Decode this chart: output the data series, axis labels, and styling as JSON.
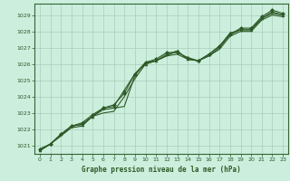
{
  "title": "Graphe pression niveau de la mer (hPa)",
  "bg_color": "#cceedd",
  "grid_color": "#aaccbb",
  "line_color": "#2d5a27",
  "spine_color": "#336633",
  "xlim": [
    -0.5,
    23.5
  ],
  "ylim": [
    1020.5,
    1029.7
  ],
  "xticks": [
    0,
    1,
    2,
    3,
    4,
    5,
    6,
    7,
    8,
    9,
    10,
    11,
    12,
    13,
    14,
    15,
    16,
    17,
    18,
    19,
    20,
    21,
    22,
    23
  ],
  "yticks": [
    1021,
    1022,
    1023,
    1024,
    1025,
    1026,
    1027,
    1028,
    1029
  ],
  "series": [
    {
      "x": [
        0,
        1,
        2,
        3,
        4,
        5,
        6,
        7,
        8,
        9,
        10,
        11,
        12,
        13,
        14,
        15,
        16,
        17,
        18,
        19,
        20,
        21,
        22,
        23
      ],
      "y": [
        1020.7,
        1021.1,
        1021.6,
        1022.2,
        1022.3,
        1022.8,
        1023.2,
        1023.3,
        1023.4,
        1025.3,
        1026.1,
        1026.2,
        1026.5,
        1026.6,
        1026.3,
        1026.2,
        1026.5,
        1027.0,
        1027.8,
        1028.1,
        1028.1,
        1028.8,
        1029.1,
        1029.0
      ],
      "marker": null,
      "lw": 0.8
    },
    {
      "x": [
        0,
        1,
        2,
        3,
        4,
        5,
        6,
        7,
        8,
        9,
        10,
        11,
        12,
        13,
        14,
        15,
        16,
        17,
        18,
        19,
        20,
        21,
        22,
        23
      ],
      "y": [
        1020.7,
        1021.1,
        1021.7,
        1022.2,
        1022.3,
        1022.8,
        1023.3,
        1023.4,
        1024.4,
        1025.4,
        1026.0,
        1026.2,
        1026.6,
        1026.8,
        1026.3,
        1026.2,
        1026.6,
        1027.1,
        1027.9,
        1028.1,
        1028.1,
        1028.8,
        1029.2,
        1029.0
      ],
      "marker": "^",
      "lw": 0.8
    },
    {
      "x": [
        0,
        1,
        2,
        3,
        4,
        5,
        6,
        7,
        8,
        9,
        10,
        11,
        12,
        13,
        14,
        15,
        16,
        17,
        18,
        19,
        20,
        21,
        22,
        23
      ],
      "y": [
        1020.8,
        1021.1,
        1021.7,
        1022.2,
        1022.4,
        1022.9,
        1023.3,
        1023.5,
        1024.2,
        1025.4,
        1026.1,
        1026.3,
        1026.7,
        1026.7,
        1026.4,
        1026.2,
        1026.6,
        1027.1,
        1027.8,
        1028.2,
        1028.2,
        1028.9,
        1029.3,
        1029.1
      ],
      "marker": "D",
      "lw": 0.8
    },
    {
      "x": [
        0,
        1,
        2,
        3,
        4,
        5,
        6,
        7,
        8,
        9,
        10,
        11,
        12,
        13,
        14,
        15,
        16,
        17,
        18,
        19,
        20,
        21,
        22,
        23
      ],
      "y": [
        1020.7,
        1021.1,
        1021.6,
        1022.1,
        1022.2,
        1022.8,
        1023.0,
        1023.1,
        1024.0,
        1025.1,
        1026.0,
        1026.2,
        1026.5,
        1026.8,
        1026.3,
        1026.2,
        1026.5,
        1026.9,
        1027.7,
        1028.0,
        1028.0,
        1028.7,
        1029.0,
        1028.9
      ],
      "marker": null,
      "lw": 0.8
    }
  ]
}
